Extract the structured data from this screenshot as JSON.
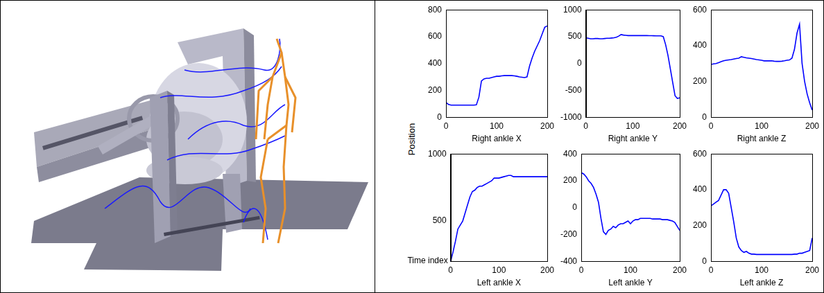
{
  "y_label": "Position",
  "x_label": "Time index",
  "chart_data": [
    {
      "type": "line",
      "x_label": "Right ankle X",
      "color": "#0000ff",
      "grid": false,
      "xlim": [
        0,
        200
      ],
      "xticks": [
        0,
        100,
        200
      ],
      "ylim": [
        0,
        800
      ],
      "yticks": [
        0,
        200,
        400,
        600,
        800
      ],
      "x": [
        0,
        5,
        10,
        15,
        20,
        25,
        30,
        35,
        40,
        45,
        50,
        55,
        60,
        65,
        70,
        75,
        80,
        85,
        90,
        95,
        100,
        105,
        110,
        115,
        120,
        125,
        130,
        135,
        140,
        145,
        150,
        155,
        160,
        165,
        170,
        175,
        180,
        185,
        190,
        195,
        200
      ],
      "values": [
        110,
        95,
        90,
        90,
        90,
        90,
        90,
        90,
        90,
        90,
        90,
        90,
        92,
        150,
        270,
        285,
        290,
        290,
        295,
        300,
        305,
        305,
        308,
        310,
        310,
        310,
        310,
        308,
        305,
        300,
        298,
        295,
        300,
        380,
        440,
        490,
        530,
        570,
        620,
        670,
        680
      ]
    },
    {
      "type": "line",
      "x_label": "Right ankle Y",
      "color": "#0000ff",
      "grid": false,
      "xlim": [
        0,
        200
      ],
      "xticks": [
        0,
        100,
        200
      ],
      "ylim": [
        -1000,
        1000
      ],
      "yticks": [
        -1000,
        -500,
        0,
        500,
        1000
      ],
      "x": [
        0,
        5,
        10,
        15,
        20,
        25,
        30,
        35,
        40,
        45,
        50,
        55,
        60,
        65,
        70,
        75,
        80,
        85,
        90,
        95,
        100,
        105,
        110,
        115,
        120,
        125,
        130,
        135,
        140,
        145,
        150,
        155,
        160,
        165,
        170,
        175,
        180,
        185,
        190,
        195,
        200
      ],
      "values": [
        480,
        470,
        460,
        460,
        465,
        465,
        460,
        460,
        465,
        470,
        470,
        475,
        480,
        490,
        510,
        540,
        530,
        525,
        520,
        520,
        520,
        520,
        520,
        520,
        520,
        520,
        520,
        518,
        518,
        517,
        516,
        515,
        515,
        500,
        350,
        150,
        -100,
        -350,
        -600,
        -650,
        -640
      ]
    },
    {
      "type": "line",
      "x_label": "Right ankle Z",
      "color": "#0000ff",
      "grid": false,
      "xlim": [
        0,
        200
      ],
      "xticks": [
        0,
        100,
        200
      ],
      "ylim": [
        0,
        600
      ],
      "yticks": [
        0,
        200,
        400,
        600
      ],
      "x": [
        0,
        5,
        10,
        15,
        20,
        25,
        30,
        35,
        40,
        45,
        50,
        55,
        60,
        65,
        70,
        75,
        80,
        85,
        90,
        95,
        100,
        105,
        110,
        115,
        120,
        125,
        130,
        135,
        140,
        145,
        150,
        155,
        160,
        165,
        170,
        175,
        180,
        185,
        190,
        195,
        200
      ],
      "values": [
        295,
        298,
        300,
        305,
        310,
        315,
        318,
        320,
        322,
        325,
        328,
        330,
        338,
        335,
        332,
        330,
        328,
        325,
        322,
        320,
        318,
        315,
        315,
        315,
        315,
        313,
        312,
        312,
        313,
        315,
        318,
        320,
        330,
        380,
        470,
        520,
        300,
        200,
        130,
        80,
        40
      ]
    },
    {
      "type": "line",
      "x_label": "Left ankle X",
      "color": "#0000ff",
      "grid": false,
      "xlim": [
        0,
        200
      ],
      "xticks": [
        0,
        100,
        200
      ],
      "ylim": [
        200,
        1000
      ],
      "yticks": [
        500,
        1000
      ],
      "x": [
        0,
        5,
        10,
        15,
        20,
        25,
        30,
        35,
        40,
        45,
        50,
        55,
        60,
        65,
        70,
        75,
        80,
        85,
        90,
        95,
        100,
        105,
        110,
        115,
        120,
        125,
        130,
        135,
        140,
        145,
        150,
        155,
        160,
        165,
        170,
        175,
        180,
        185,
        190,
        195,
        200
      ],
      "values": [
        200,
        270,
        350,
        440,
        470,
        500,
        560,
        620,
        680,
        720,
        730,
        750,
        760,
        760,
        770,
        780,
        790,
        800,
        820,
        820,
        820,
        825,
        830,
        835,
        840,
        840,
        830,
        830,
        830,
        830,
        830,
        830,
        830,
        830,
        830,
        830,
        830,
        830,
        830,
        830,
        830
      ]
    },
    {
      "type": "line",
      "x_label": "Left ankle Y",
      "color": "#0000ff",
      "grid": false,
      "xlim": [
        0,
        200
      ],
      "xticks": [
        0,
        100,
        200
      ],
      "ylim": [
        -400,
        400
      ],
      "yticks": [
        -400,
        -200,
        0,
        200,
        400
      ],
      "x": [
        0,
        5,
        10,
        15,
        20,
        25,
        30,
        35,
        40,
        45,
        50,
        55,
        60,
        65,
        70,
        75,
        80,
        85,
        90,
        95,
        100,
        105,
        110,
        115,
        120,
        125,
        130,
        135,
        140,
        145,
        150,
        155,
        160,
        165,
        170,
        175,
        180,
        185,
        190,
        195,
        200
      ],
      "values": [
        260,
        250,
        230,
        200,
        180,
        150,
        100,
        40,
        -80,
        -180,
        -200,
        -170,
        -160,
        -140,
        -150,
        -130,
        -120,
        -120,
        -110,
        -100,
        -120,
        -100,
        -90,
        -90,
        -80,
        -80,
        -80,
        -80,
        -80,
        -85,
        -85,
        -85,
        -85,
        -90,
        -90,
        -90,
        -95,
        -100,
        -110,
        -140,
        -170
      ]
    },
    {
      "type": "line",
      "x_label": "Left ankle Z",
      "color": "#0000ff",
      "grid": false,
      "xlim": [
        0,
        200
      ],
      "xticks": [
        0,
        100,
        200
      ],
      "ylim": [
        0,
        600
      ],
      "yticks": [
        0,
        200,
        400,
        600
      ],
      "x": [
        0,
        5,
        10,
        15,
        20,
        25,
        30,
        35,
        40,
        45,
        50,
        55,
        60,
        65,
        70,
        75,
        80,
        85,
        90,
        95,
        100,
        105,
        110,
        115,
        120,
        125,
        130,
        135,
        140,
        145,
        150,
        155,
        160,
        165,
        170,
        175,
        180,
        185,
        190,
        195,
        200
      ],
      "values": [
        310,
        320,
        330,
        340,
        370,
        400,
        400,
        380,
        300,
        220,
        130,
        80,
        60,
        50,
        55,
        45,
        40,
        40,
        38,
        38,
        38,
        38,
        38,
        38,
        38,
        38,
        38,
        38,
        38,
        38,
        38,
        38,
        38,
        40,
        40,
        45,
        45,
        50,
        55,
        60,
        130
      ]
    }
  ]
}
